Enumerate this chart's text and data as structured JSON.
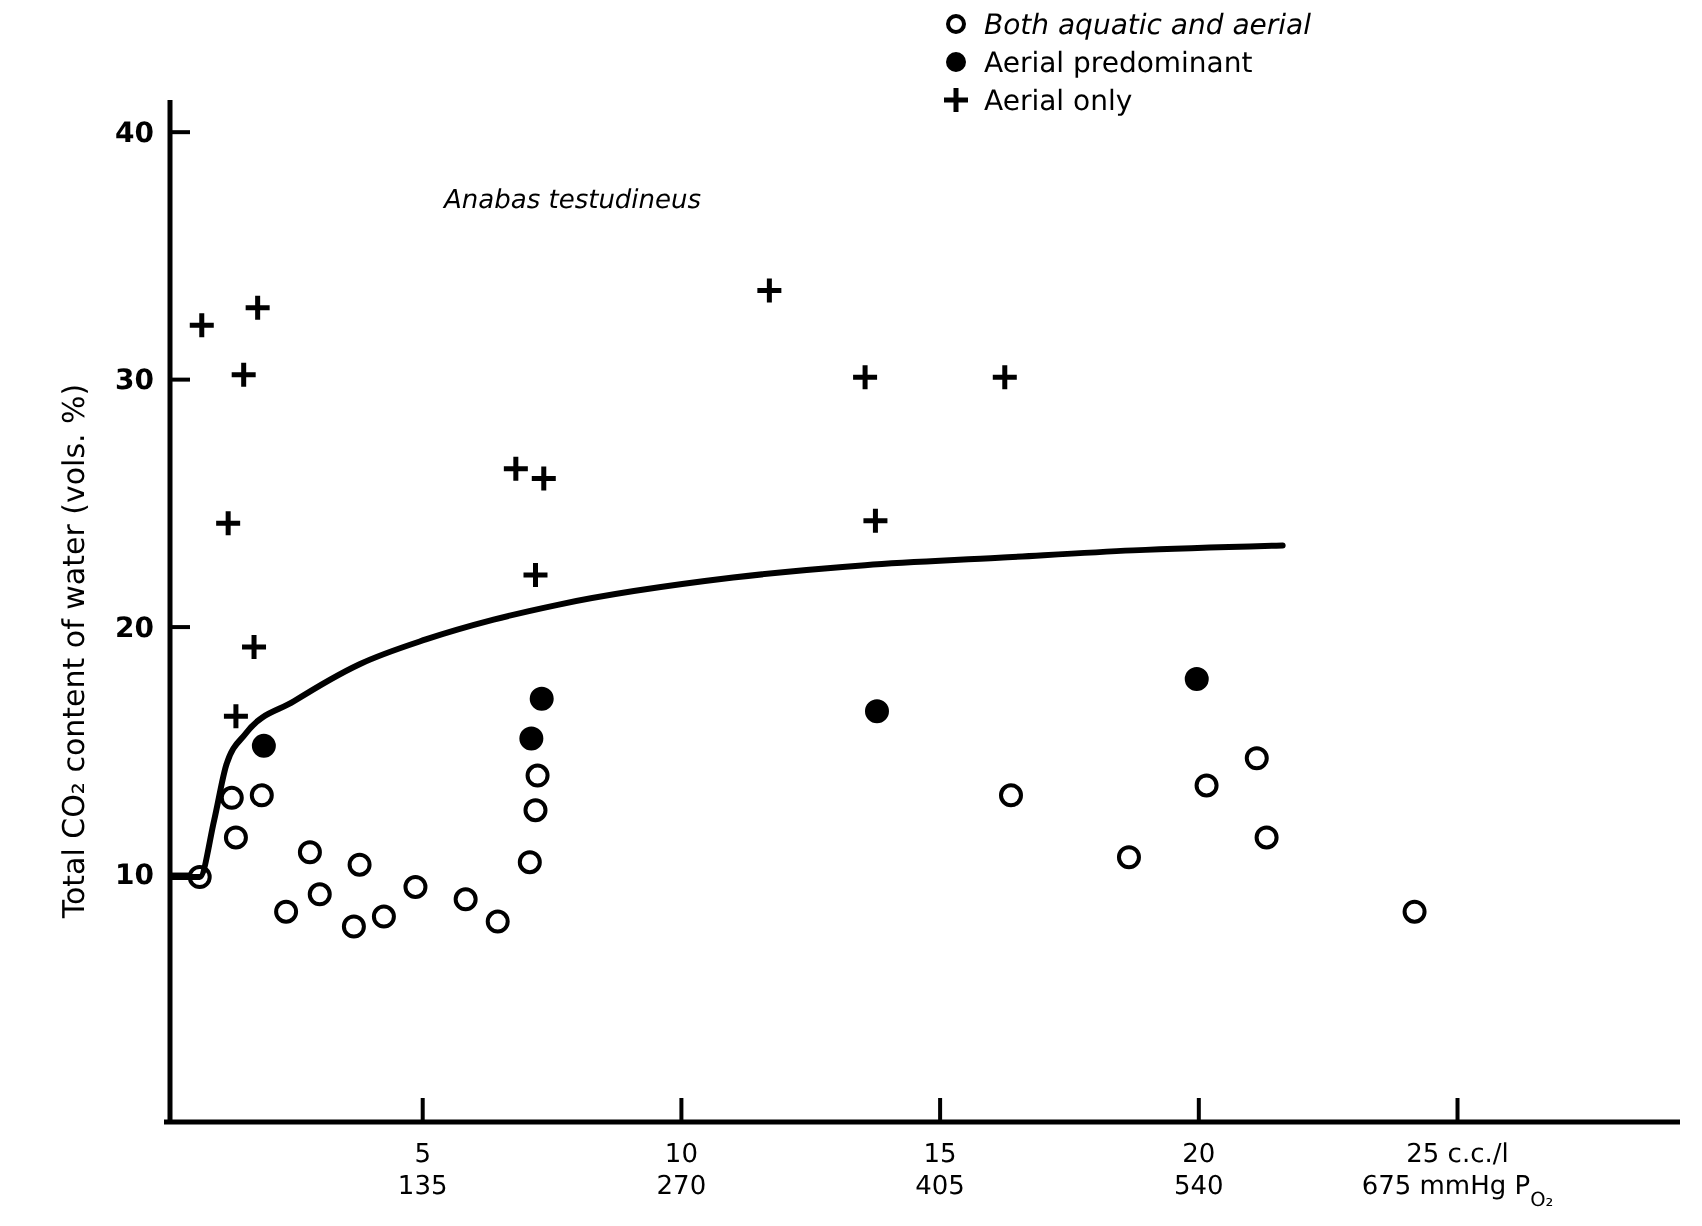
{
  "chart_data": {
    "type": "scatter",
    "ylabel": "Total CO₂ content of water (vols. %)",
    "annotations": [
      "Anabas testudineus"
    ],
    "xlim": [
      0,
      29.3
    ],
    "xticks": [
      5,
      10,
      15,
      20,
      {
        "value": 25,
        "label": "25 c.c./l"
      }
    ],
    "x2lim": [
      0,
      791.1
    ],
    "x2ticks": [
      135,
      270,
      405,
      540,
      {
        "value": 675,
        "label": "675 mmHg P$_{O₂}$"
      }
    ],
    "ylim": [
      0,
      41.3
    ],
    "yticks": [
      10,
      20,
      30,
      40
    ],
    "grid": false,
    "legend": "top right",
    "series": [
      {
        "name": "Both aquatic and aerial",
        "marker": "circle",
        "color": "#ffffff",
        "x": [
          0.69,
          1.31,
          1.39,
          1.89,
          2.36,
          2.82,
          3.01,
          3.78,
          3.67,
          4.25,
          4.86,
          5.83,
          6.45,
          7.07,
          7.18,
          7.22,
          16.37,
          18.65,
          20.15,
          21.12,
          21.31,
          24.17
        ],
        "values": [
          9.9,
          13.1,
          11.5,
          13.2,
          8.5,
          10.9,
          9.2,
          10.4,
          7.9,
          8.3,
          9.5,
          9.0,
          8.1,
          10.5,
          12.6,
          14.0,
          13.2,
          10.7,
          13.6,
          14.7,
          11.5,
          8.5
        ]
      },
      {
        "name": "Aerial predominant",
        "marker": "circle",
        "color": "#000000",
        "x": [
          1.93,
          7.1,
          7.3,
          13.78,
          19.96
        ],
        "values": [
          15.2,
          15.5,
          17.1,
          16.6,
          17.9
        ]
      },
      {
        "name": "Aerial only",
        "marker": "cross",
        "color": "#000000",
        "x": [
          0.73,
          1.81,
          1.54,
          1.24,
          1.74,
          1.39,
          6.8,
          7.34,
          7.18,
          11.7,
          13.55,
          16.25,
          13.75
        ],
        "values": [
          32.2,
          32.9,
          30.2,
          24.2,
          19.2,
          16.4,
          26.4,
          26.0,
          22.1,
          33.6,
          30.1,
          30.1,
          24.3
        ]
      },
      {
        "type": "line",
        "marker": "none",
        "line_style": "solid",
        "color": "#000000",
        "x": [
          0.15,
          0.69,
          0.97,
          1.2,
          1.58,
          2.51,
          3.78,
          5.06,
          6.37,
          7.61,
          11.0,
          13.55,
          16.14,
          18.73,
          21.62
        ],
        "values": [
          9.9,
          9.9,
          12.2,
          14.4,
          15.7,
          17.0,
          18.5,
          19.5,
          20.3,
          20.9,
          22.0,
          22.5,
          22.8,
          23.1,
          23.3
        ]
      }
    ]
  }
}
